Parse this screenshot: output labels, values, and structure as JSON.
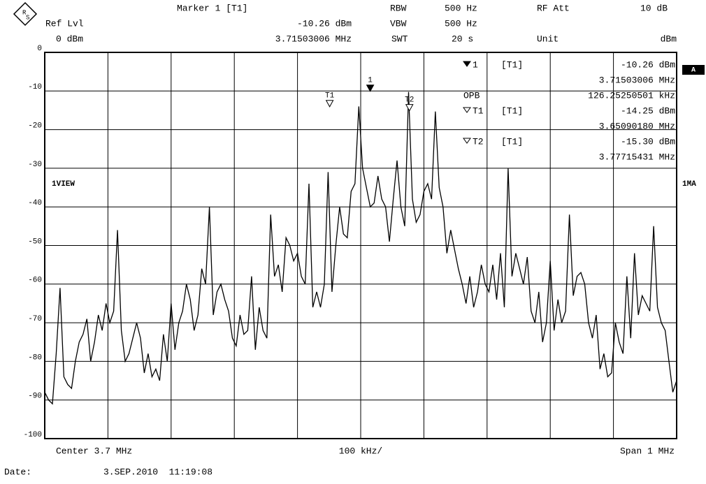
{
  "chart_data": {
    "type": "line",
    "header": {
      "marker_title": "Marker 1 [T1]",
      "marker_level": "-10.26 dBm",
      "marker_freq": "3.71503006 MHz",
      "ref_lvl_label": "Ref Lvl",
      "ref_lvl": "0 dBm",
      "rbw_label": "RBW",
      "rbw": "500 Hz",
      "vbw_label": "VBW",
      "vbw": "500 Hz",
      "swt_label": "SWT",
      "swt": "20 s",
      "rf_att_label": "RF Att",
      "rf_att": "10 dB",
      "unit_label": "Unit",
      "unit": "dBm"
    },
    "side_labels": {
      "trace_mode": "1VIEW",
      "a": "A",
      "detector": "1MA"
    },
    "center_label": "Center 3.7 MHz",
    "div_label": "100 kHz/",
    "span_label": "Span 1 MHz",
    "date_label": "Date:",
    "date": "3.SEP.2010  11:19:08",
    "xlim": [
      3.2,
      4.2
    ],
    "ylim": [
      -100,
      0
    ],
    "yticks": [
      0,
      -10,
      -20,
      -30,
      -40,
      -50,
      -60,
      -70,
      -80,
      -90,
      -100
    ],
    "grid": true,
    "color": "#000000",
    "values": [
      -88,
      -90,
      -91,
      -78,
      -61,
      -84,
      -86,
      -87,
      -80,
      -75,
      -73,
      -69,
      -80,
      -75,
      -68,
      -72,
      -65,
      -70,
      -67,
      -46,
      -72,
      -80,
      -78,
      -74,
      -70,
      -74,
      -83,
      -78,
      -84,
      -82,
      -85,
      -73,
      -80,
      -65,
      -77,
      -70,
      -67,
      -60,
      -64,
      -72,
      -68,
      -56,
      -60,
      -40,
      -68,
      -62,
      -60,
      -64,
      -67,
      -74,
      -76,
      -68,
      -73,
      -72,
      -58,
      -77,
      -66,
      -72,
      -74,
      -42,
      -58,
      -55,
      -62,
      -48,
      -50,
      -54,
      -52,
      -58,
      -60,
      -34,
      -66,
      -62,
      -66,
      -60,
      -31,
      -62,
      -50,
      -40,
      -47,
      -48,
      -36,
      -34,
      -14,
      -30,
      -35,
      -40,
      -39,
      -32,
      -38,
      -40,
      -49,
      -38,
      -28,
      -40,
      -45,
      -10.26,
      -38,
      -44,
      -42,
      -36,
      -34,
      -38,
      -15.3,
      -35,
      -40,
      -52,
      -46,
      -51,
      -56,
      -60,
      -65,
      -58,
      -66,
      -62,
      -55,
      -60,
      -62,
      -55,
      -64,
      -52,
      -66,
      -30,
      -58,
      -52,
      -56,
      -60,
      -53,
      -67,
      -70,
      -62,
      -75,
      -70,
      -54,
      -72,
      -64,
      -70,
      -67,
      -42,
      -63,
      -58,
      -57,
      -60,
      -70,
      -74,
      -68,
      -82,
      -78,
      -84,
      -83,
      -70,
      -75,
      -78,
      -58,
      -74,
      -52,
      -68,
      -63,
      -65,
      -67,
      -45,
      -66,
      -70,
      -72,
      -80,
      -88,
      -85
    ],
    "markers": [
      {
        "symbol": "1",
        "filled": true,
        "trace": "[T1]",
        "x": 3.71503006,
        "y": -10.26,
        "level": "-10.26 dBm",
        "freq": "3.71503006 MHz"
      },
      {
        "symbol": "T1",
        "filled": false,
        "trace": "[T1]",
        "x": 3.6509018,
        "y": -14.25,
        "level": "-14.25 dBm",
        "freq": "3.65090180 MHz"
      },
      {
        "symbol": "T2",
        "filled": false,
        "trace": "[T1]",
        "x": 3.77715431,
        "y": -15.3,
        "level": "-15.30 dBm",
        "freq": "3.77715431 MHz"
      }
    ],
    "opb_label": "OPB",
    "opb": "126.25250501 kHz"
  }
}
